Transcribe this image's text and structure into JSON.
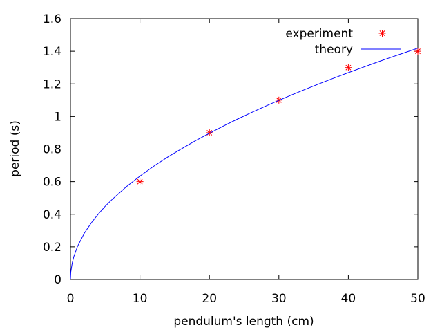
{
  "chart_data": {
    "type": "scatter",
    "xlabel": "pendulum's length (cm)",
    "ylabel": "period (s)",
    "xlim": [
      0,
      50
    ],
    "ylim": [
      0,
      1.6
    ],
    "x_ticks": [
      "0",
      "10",
      "20",
      "30",
      "40",
      "50"
    ],
    "y_ticks": [
      "0",
      "0.2",
      "0.4",
      "0.6",
      "0.8",
      "1",
      "1.2",
      "1.4",
      "1.6"
    ],
    "grid": false,
    "legend_position": "top-right",
    "series": [
      {
        "name": "experiment",
        "kind": "points",
        "marker": "asterisk",
        "color": "#ff0000",
        "x": [
          10,
          20,
          30,
          40,
          50
        ],
        "y": [
          0.6,
          0.9,
          1.1,
          1.3,
          1.4
        ]
      },
      {
        "name": "theory",
        "kind": "line",
        "color": "#0000ff",
        "function": "2*pi*sqrt(L/981)",
        "x": [
          0,
          0.05,
          0.25,
          0.5,
          1,
          2,
          3,
          4,
          5,
          6,
          8,
          10,
          12,
          14,
          16,
          18,
          20,
          22,
          24,
          26,
          28,
          30,
          32,
          34,
          36,
          38,
          40,
          42,
          44,
          46,
          48,
          50
        ],
        "y": [
          0,
          0.045,
          0.1,
          0.142,
          0.201,
          0.284,
          0.347,
          0.401,
          0.449,
          0.491,
          0.567,
          0.634,
          0.695,
          0.751,
          0.802,
          0.851,
          0.897,
          0.941,
          0.983,
          1.023,
          1.062,
          1.099,
          1.135,
          1.17,
          1.204,
          1.237,
          1.269,
          1.3,
          1.331,
          1.361,
          1.39,
          1.419
        ]
      }
    ]
  }
}
